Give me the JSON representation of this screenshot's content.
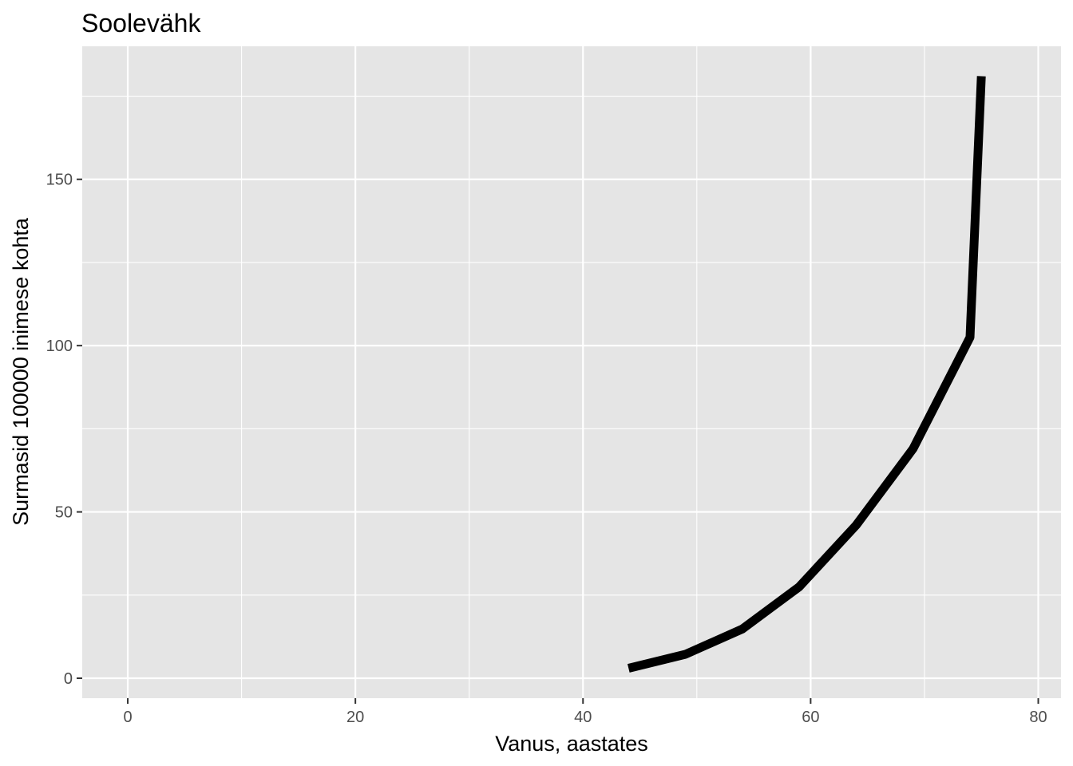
{
  "chart_data": {
    "type": "line",
    "title": "Soolevähk",
    "xlabel": "Vanus, aastates",
    "ylabel": "Surmasid 100000 inimese kohta",
    "xlim": [
      -4,
      82
    ],
    "ylim": [
      -6,
      190
    ],
    "x_ticks": [
      0,
      20,
      40,
      60,
      80
    ],
    "y_ticks": [
      0,
      50,
      100,
      150
    ],
    "x_ticks_minor": [
      10,
      30,
      50,
      70
    ],
    "y_ticks_minor": [
      25,
      75,
      125,
      175
    ],
    "grid": true,
    "legend": "none",
    "series": [
      {
        "x": [
          44,
          49,
          54,
          59,
          64,
          69,
          74,
          75
        ],
        "y": [
          3,
          7.2,
          14.8,
          27.5,
          46,
          69,
          102.5,
          181
        ]
      }
    ],
    "colors": {
      "panel_background": "#e5e5e5",
      "grid_line": "#ffffff",
      "line": "#000000",
      "tick_label": "#4d4d4d",
      "tick_mark": "#333333"
    }
  }
}
